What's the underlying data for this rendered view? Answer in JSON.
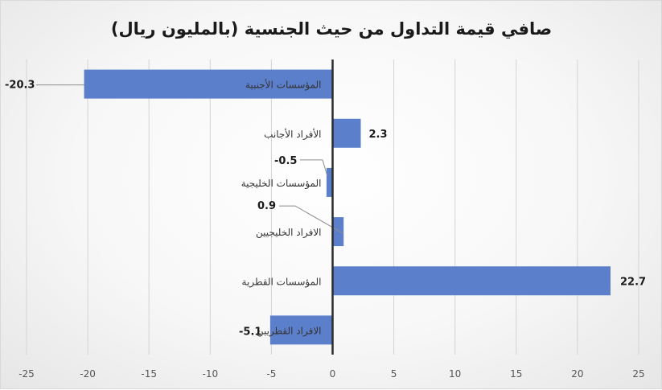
{
  "chart_data": {
    "type": "bar",
    "orientation": "horizontal",
    "title": "صافي قيمة التداول من حيث الجنسية (بالمليون ريال)",
    "categories": [
      "المؤسسات الأجنبية",
      "الأفراد الأجانب",
      "المؤسسات الخليجية",
      "الافراد الخليجيين",
      "المؤسسات القطرية",
      "الافراد القطريين"
    ],
    "values": [
      -20.3,
      2.3,
      -0.5,
      0.9,
      22.7,
      -5.1
    ],
    "data_labels": [
      "-20.3",
      "2.3",
      "-0.5",
      "0.9",
      "22.7",
      "-5.1"
    ],
    "xlim": [
      -25,
      25
    ],
    "xticks": [
      -25,
      -20,
      -15,
      -10,
      -5,
      0,
      5,
      10,
      15,
      20,
      25
    ],
    "grid": true,
    "legend": "none",
    "bar_color": "#5b7fcb",
    "axis_color": "#2b2b2b",
    "grid_color": "#d4d4d4"
  }
}
